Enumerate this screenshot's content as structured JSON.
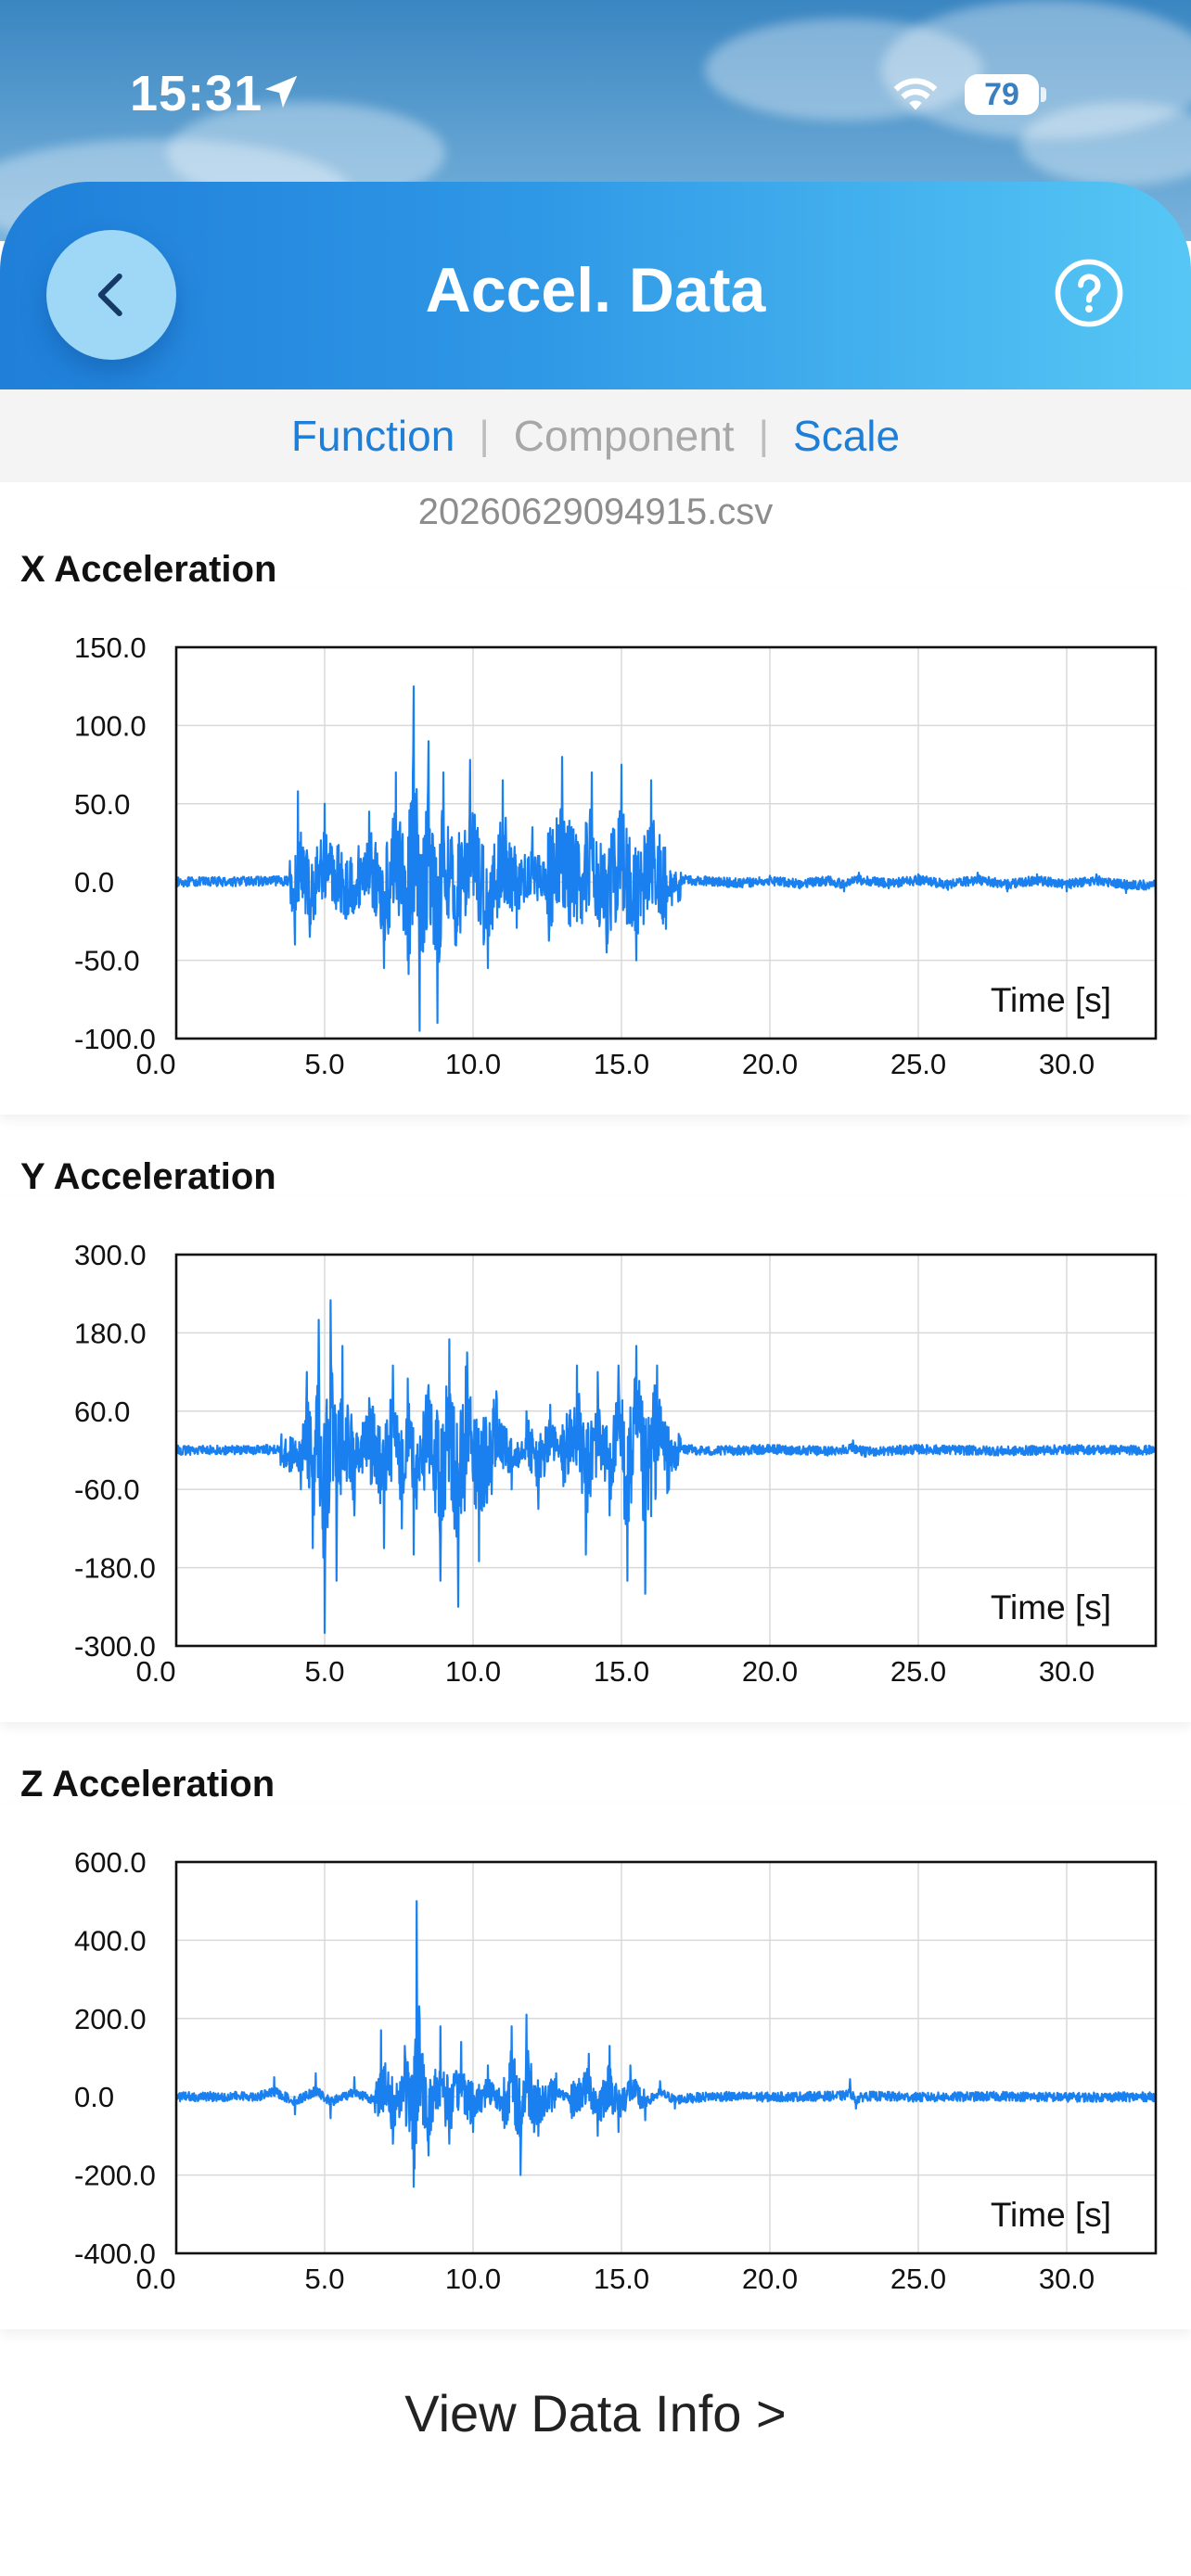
{
  "status_bar": {
    "time": "15:31",
    "battery": "79"
  },
  "header": {
    "title": "Accel. Data"
  },
  "tabs": {
    "function": "Function",
    "component": "Component",
    "scale": "Scale",
    "separator": "|"
  },
  "file_name": "20260629094915.csv",
  "footer": {
    "view_data_info": "View Data Info  >"
  },
  "colors": {
    "accent": "#1e7fd8",
    "series": "#1a80f0"
  },
  "charts": [
    {
      "title": "X Acceleration",
      "x_label": "Time [s]",
      "y_ticks": [
        "150.0",
        "100.0",
        "50.0",
        "0.0",
        "-50.0",
        "-100.0"
      ],
      "x_ticks": [
        "0.0",
        "5.0",
        "10.0",
        "15.0",
        "20.0",
        "25.0",
        "30.0"
      ]
    },
    {
      "title": "Y Acceleration",
      "x_label": "Time [s]",
      "y_ticks": [
        "300.0",
        "180.0",
        "60.0",
        "-60.0",
        "-180.0",
        "-300.0"
      ],
      "x_ticks": [
        "0.0",
        "5.0",
        "10.0",
        "15.0",
        "20.0",
        "25.0",
        "30.0"
      ]
    },
    {
      "title": "Z Acceleration",
      "x_label": "Time [s]",
      "y_ticks": [
        "600.0",
        "400.0",
        "200.0",
        "0.0",
        "-200.0",
        "-400.0"
      ],
      "x_ticks": [
        "0.0",
        "5.0",
        "10.0",
        "15.0",
        "20.0",
        "25.0",
        "30.0"
      ]
    }
  ],
  "chart_data": [
    {
      "type": "line",
      "title": "X Acceleration",
      "xlabel": "Time [s]",
      "ylabel": "",
      "xlim": [
        0,
        33
      ],
      "ylim": [
        -100,
        150
      ],
      "grid": true,
      "series": [
        {
          "x": [
            0,
            3.8,
            4.0,
            4.1,
            4.5,
            5.0,
            5.8,
            6.5,
            7.0,
            7.4,
            7.8,
            8.0,
            8.2,
            8.5,
            8.8,
            9.0,
            9.4,
            9.9,
            10.5,
            11.0,
            11.5,
            12.0,
            12.5,
            13.0,
            13.5,
            14.0,
            14.5,
            15.0,
            15.5,
            16.0,
            16.5,
            17.0,
            18.0,
            19.0,
            20.0,
            21.0,
            22.0,
            22.5,
            23.0,
            24.0,
            25.0,
            26.0,
            27.0,
            28.0,
            29.0,
            30.0,
            31.0,
            32.0,
            33.0
          ],
          "y": [
            0,
            3,
            -40,
            58,
            -35,
            50,
            -20,
            45,
            -55,
            70,
            -50,
            125,
            -95,
            90,
            -90,
            70,
            -40,
            78,
            -55,
            65,
            -15,
            35,
            -20,
            80,
            -25,
            70,
            -45,
            75,
            -50,
            65,
            -30,
            6,
            2,
            -3,
            4,
            -4,
            3,
            -6,
            6,
            -4,
            5,
            -5,
            6,
            -6,
            5,
            -6,
            5,
            -7,
            -8
          ]
        }
      ]
    },
    {
      "type": "line",
      "title": "Y Acceleration",
      "xlabel": "Time [s]",
      "ylabel": "",
      "xlim": [
        0,
        33
      ],
      "ylim": [
        -300,
        300
      ],
      "grid": true,
      "series": [
        {
          "x": [
            0,
            3.5,
            4.2,
            4.4,
            4.6,
            4.8,
            5.0,
            5.2,
            5.4,
            5.6,
            6.0,
            6.5,
            7.0,
            7.3,
            7.6,
            7.8,
            8.0,
            8.5,
            8.9,
            9.2,
            9.5,
            9.8,
            10.2,
            10.8,
            11.3,
            11.8,
            12.2,
            12.6,
            13.0,
            13.5,
            13.8,
            14.2,
            14.6,
            14.9,
            15.2,
            15.5,
            15.8,
            16.2,
            16.6,
            17.0,
            18.0,
            20.0,
            22.0,
            22.8,
            23.2,
            25.0,
            28.0,
            30.0,
            33.0
          ],
          "y": [
            0,
            5,
            -60,
            120,
            -150,
            200,
            -280,
            230,
            -200,
            160,
            -100,
            80,
            -150,
            130,
            -120,
            110,
            -160,
            100,
            -200,
            170,
            -240,
            150,
            -170,
            80,
            -60,
            60,
            -90,
            70,
            -30,
            130,
            -160,
            120,
            -100,
            130,
            -200,
            160,
            -220,
            130,
            -60,
            8,
            -5,
            6,
            -6,
            15,
            -10,
            6,
            -5,
            5,
            0
          ]
        }
      ]
    },
    {
      "type": "line",
      "title": "Z Acceleration",
      "xlabel": "Time [s]",
      "ylabel": "",
      "xlim": [
        0,
        33
      ],
      "ylim": [
        -400,
        600
      ],
      "grid": true,
      "series": [
        {
          "x": [
            0,
            2.8,
            3.3,
            4.0,
            4.7,
            5.2,
            6.0,
            6.7,
            6.9,
            7.3,
            7.7,
            8.0,
            8.1,
            8.2,
            8.5,
            8.9,
            9.2,
            9.6,
            10.0,
            10.5,
            11.0,
            11.3,
            11.6,
            11.8,
            12.2,
            12.8,
            13.3,
            13.9,
            14.2,
            14.6,
            14.9,
            15.3,
            15.8,
            16.3,
            16.8,
            18.0,
            20.0,
            22.5,
            22.7,
            22.9,
            23.2,
            25.0,
            28.0,
            30.0,
            33.0
          ],
          "y": [
            0,
            5,
            50,
            -45,
            60,
            -55,
            50,
            -40,
            170,
            -120,
            130,
            -230,
            500,
            200,
            -150,
            180,
            -120,
            140,
            -90,
            80,
            -60,
            180,
            -200,
            210,
            -100,
            60,
            -40,
            110,
            -100,
            130,
            -90,
            80,
            -60,
            40,
            -30,
            5,
            -3,
            10,
            45,
            -30,
            8,
            -5,
            6,
            -5,
            0
          ]
        }
      ]
    }
  ]
}
